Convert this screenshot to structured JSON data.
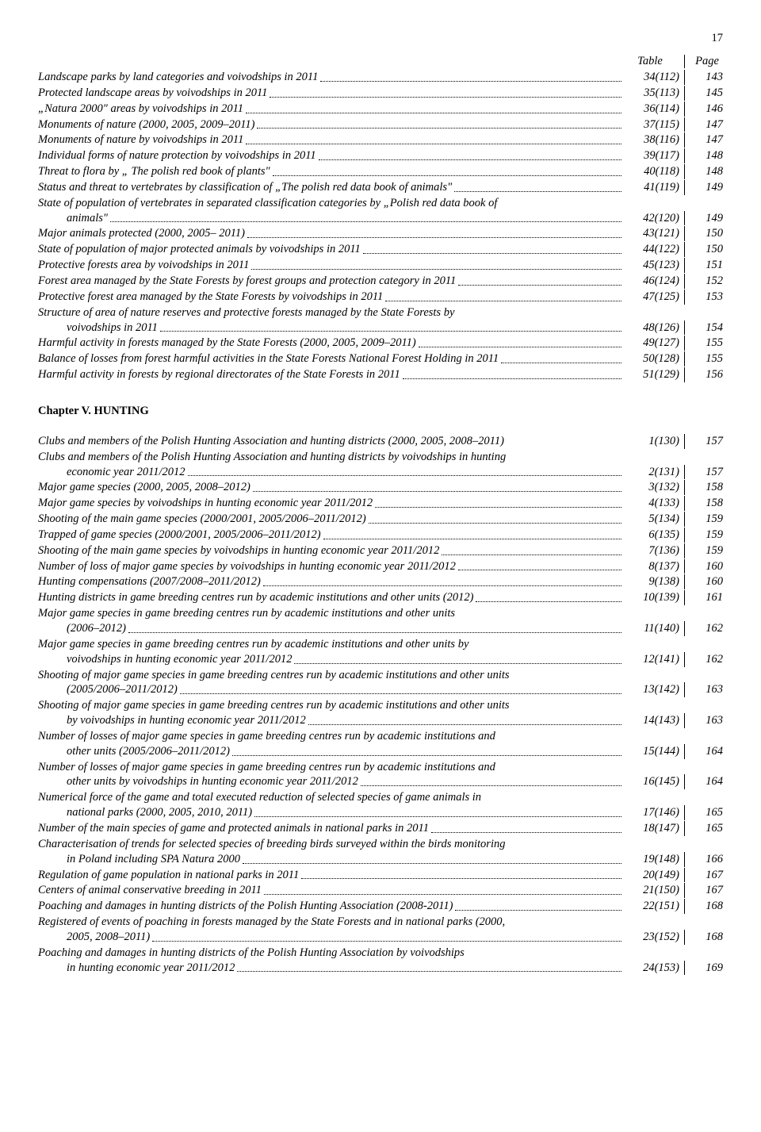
{
  "page_number": "17",
  "header": {
    "table": "Table",
    "page": "Page"
  },
  "section1": [
    {
      "title": "Landscape parks by land categories and voivodships in 2011",
      "table": "34(112)",
      "page": "143"
    },
    {
      "title": "Protected landscape areas by voivodships in 2011",
      "table": "35(113)",
      "page": "145"
    },
    {
      "title": "„Natura 2000\" areas by voivodships in 2011",
      "table": "36(114)",
      "page": "146"
    },
    {
      "title": "Monuments of nature (2000, 2005, 2009–2011)",
      "table": "37(115)",
      "page": "147"
    },
    {
      "title": "Monuments of nature by voivodships in 2011",
      "table": "38(116)",
      "page": "147"
    },
    {
      "title": "Individual forms of nature protection by voivodships in 2011",
      "table": "39(117)",
      "page": "148"
    },
    {
      "title": "Threat  to flora by „ The polish red book of plants\"",
      "table": "40(118)",
      "page": "148"
    },
    {
      "title": "Status and threat  to vertebrates by classification of  „The polish red data book of animals\"",
      "table": "41(119)",
      "page": "149"
    },
    {
      "line1": "State of population of vertebrates in separated classification categories by „Polish red data book of",
      "line2": "animals\"",
      "table": "42(120)",
      "page": "149"
    },
    {
      "title": "Major animals  protected (2000, 2005– 2011)",
      "table": "43(121)",
      "page": "150"
    },
    {
      "title": "State of population of major protected animals by voivodships in 2011",
      "table": "44(122)",
      "page": "150"
    },
    {
      "title": "Protective forests area by voivodships in 2011",
      "table": "45(123)",
      "page": "151"
    },
    {
      "title": "Forest area managed by the State Forests by forest groups and protection category in 2011",
      "table": "46(124)",
      "page": "152"
    },
    {
      "title": "Protective forest area managed by the State Forests by voivodships in 2011",
      "table": "47(125)",
      "page": "153"
    },
    {
      "line1": "Structure of area of nature reserves and protective forests managed by the State Forests by",
      "line2": "voivodships in 2011",
      "table": "48(126)",
      "page": "154"
    },
    {
      "title": "Harmful activity in forests managed by the State Forests (2000, 2005, 2009–2011)",
      "table": "49(127)",
      "page": "155"
    },
    {
      "title": "Balance of losses from forest harmful activities in the State Forests National Forest Holding in 2011",
      "table": "50(128)",
      "page": "155"
    },
    {
      "title": "Harmful activity in forests by regional directorates of the State Forests in 2011",
      "table": "51(129)",
      "page": "156"
    }
  ],
  "chapter": "Chapter V. HUNTING",
  "section2": [
    {
      "title": "Clubs and members of the Polish Hunting Association and hunting districts (2000, 2005, 2008–2011)",
      "table": "1(130)",
      "page": "157",
      "nodots": true
    },
    {
      "line1": "Clubs and members of the Polish Hunting Association and hunting districts by voivodships in hunting",
      "line2": "economic year 2011/2012",
      "table": "2(131)",
      "page": "157"
    },
    {
      "title": "Major game species (2000, 2005, 2008–2012)",
      "table": "3(132)",
      "page": "158"
    },
    {
      "title": "Major game species by voivodships  in hunting economic year 2011/2012",
      "table": "4(133)",
      "page": "158"
    },
    {
      "title": "Shooting of the main game species (2000/2001, 2005/2006–2011/2012)",
      "table": "5(134)",
      "page": "159"
    },
    {
      "title": "Trapped of game species (2000/2001, 2005/2006–2011/2012)",
      "table": "6(135)",
      "page": "159"
    },
    {
      "title": "Shooting of the main game species by voivodships in hunting economic year 2011/2012",
      "table": "7(136)",
      "page": "159"
    },
    {
      "title": "Number of loss of major game species by voivodships in hunting economic year 2011/2012",
      "table": "8(137)",
      "page": "160"
    },
    {
      "title": "Hunting compensations (2007/2008–2011/2012)",
      "table": "9(138)",
      "page": "160"
    },
    {
      "title": "Hunting districts in game breeding centres run by academic institutions and other units (2012)",
      "table": "10(139)",
      "page": "161"
    },
    {
      "line1": "Major game species in game breeding centres run by academic institutions and other units",
      "line2": "(2006–2012)",
      "table": "11(140)",
      "page": "162"
    },
    {
      "line1": "Major game species in game breeding centres run by academic institutions and other units by",
      "line2": "voivodships in hunting economic year 2011/2012",
      "table": "12(141)",
      "page": "162"
    },
    {
      "line1": "Shooting of major game species in game breeding centres run by academic institutions and other units",
      "line2": "(2005/2006–2011/2012)",
      "table": "13(142)",
      "page": "163"
    },
    {
      "line1": "Shooting of major game species in game breeding centres run by academic institutions and other units",
      "line2": "by voivodships in hunting economic year 2011/2012",
      "table": "14(143)",
      "page": "163"
    },
    {
      "line1": "Number of losses of major game species in game breeding centres run by academic institutions and",
      "line2": "other units (2005/2006–2011/2012)",
      "table": "15(144)",
      "page": "164"
    },
    {
      "line1": "Number of losses of major game species in game breeding centres run by academic institutions and",
      "line2": "other units by voivodships in hunting economic year 2011/2012",
      "table": "16(145)",
      "page": "164"
    },
    {
      "line1": "Numerical force of the game and total executed reduction of selected species of game animals in",
      "line2": "national parks  (2000, 2005, 2010, 2011)",
      "table": "17(146)",
      "page": "165"
    },
    {
      "title": "Number of the main species of game and protected animals in national parks in 2011",
      "table": "18(147)",
      "page": "165"
    },
    {
      "line1": "Characterisation of trends for selected species of breeding birds surveyed within the birds monitoring",
      "line2": "in Poland including SPA Natura 2000",
      "table": "19(148)",
      "page": "166"
    },
    {
      "title": "Regulation of game population in national parks in 2011",
      "table": "20(149)",
      "page": "167"
    },
    {
      "title": "Centers of animal conservative breeding in 2011",
      "table": "21(150)",
      "page": "167"
    },
    {
      "title": "Poaching and damages in hunting districts of the Polish Hunting Association (2008-2011)",
      "table": "22(151)",
      "page": "168"
    },
    {
      "line1": "Registered of events of poaching in forests managed by  the State Forests and in national parks (2000,",
      "line2": "2005, 2008–2011)",
      "table": "23(152)",
      "page": "168"
    },
    {
      "line1": "Poaching and damages in hunting districts of the Polish Hunting Association by voivodships",
      "line2": "in hunting economic year 2011/2012",
      "table": "24(153)",
      "page": "169"
    }
  ]
}
